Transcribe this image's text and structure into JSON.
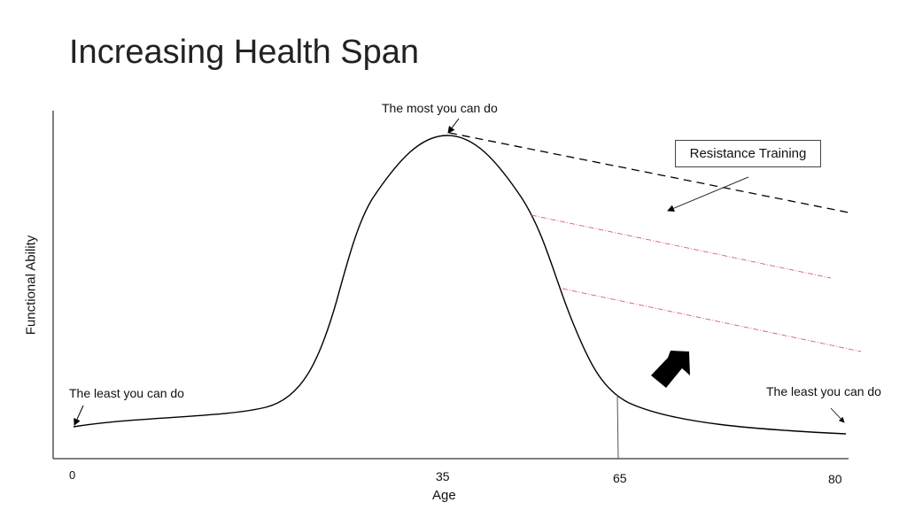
{
  "title": "Increasing Health Span",
  "annotations": {
    "peak": "The most you can do",
    "least_left": "The least you can do",
    "least_right": "The least you can do",
    "intervention": "Resistance Training"
  },
  "axes": {
    "ylabel": "Functional Ability",
    "xlabel": "Age",
    "xticks": [
      "0",
      "35",
      "65",
      "80"
    ]
  },
  "colors": {
    "curve": "#000000",
    "projection": "#e05a7a"
  }
}
